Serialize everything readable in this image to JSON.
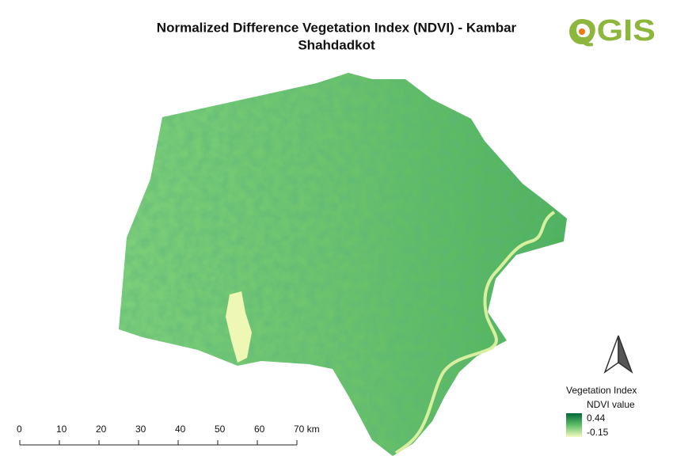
{
  "header": {
    "title_lines": [
      "Normalized Difference Vegetation Index (NDVI) - Kambar",
      "Shahdadkot"
    ],
    "logo": "QGIS"
  },
  "legend": {
    "title": "Vegetation Index",
    "subtitle": "NDVI value",
    "max": "0.44",
    "min": "-0.15"
  },
  "scale_bar": {
    "labels": [
      "0",
      "10",
      "20",
      "30",
      "40",
      "50",
      "60",
      "70 km"
    ]
  }
}
